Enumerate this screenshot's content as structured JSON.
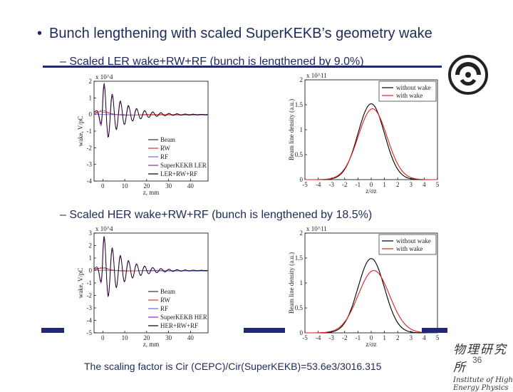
{
  "slide": {
    "bullet_symbol": "•",
    "heading": "Bunch lengthening with scaled SuperKEKB’s geometry wake",
    "sub1": "– Scaled LER wake+RW+RF (bunch is lengthened by 9.0%)",
    "sub2": "– Scaled HER wake+RW+RF (bunch is lengthened by 18.5%)",
    "footer": "The scaling factor is Cir (CEPC)/Cir(SuperKEKB)=53.6e3/3016.315",
    "page_number": "36",
    "institute_cn": "物理研究所",
    "institute_en": "Institute of High Energy Physics"
  },
  "colors": {
    "title": "#1f2a5c",
    "rule": "#222a6e"
  },
  "chart_data": [
    {
      "type": "line",
      "id": "ler-wake",
      "xlabel": "z, mm",
      "ylabel": "wake, V/pC",
      "exponent": "x 10^4",
      "xlim": [
        -4,
        48
      ],
      "ylim": [
        -4,
        2
      ],
      "xticks": [
        0,
        10,
        20,
        30,
        40
      ],
      "yticks": [
        2,
        1,
        0,
        -1,
        -2,
        -3,
        -4
      ],
      "legend": [
        "Beam",
        "RW",
        "RF",
        "SuperKEKB LER",
        "LER+RW+RF"
      ],
      "legend_colors": [
        "#333333",
        "#e03030",
        "#6a6adf",
        "#a020b0",
        "#000000"
      ]
    },
    {
      "type": "line",
      "id": "ler-density",
      "xlabel": "z/σz",
      "ylabel": "Beam line density (a.u.)",
      "exponent": "x 10^11",
      "xlim": [
        -5,
        5
      ],
      "ylim": [
        0,
        2
      ],
      "xticks": [
        -5,
        -4,
        -3,
        -2,
        -1,
        0,
        1,
        2,
        3,
        4,
        5
      ],
      "yticks": [
        2,
        1.5,
        1,
        0.5,
        0
      ],
      "series": [
        {
          "name": "without wake",
          "color": "#000000",
          "peak": 1.52,
          "center": 0,
          "sigma": 1.0
        },
        {
          "name": "with wake",
          "color": "#e02020",
          "peak": 1.42,
          "center": 0.1,
          "sigma": 1.09
        }
      ]
    },
    {
      "type": "line",
      "id": "her-wake",
      "xlabel": "z, mm",
      "ylabel": "wake, V/pC",
      "exponent": "x 10^4",
      "xlim": [
        -4,
        48
      ],
      "ylim": [
        -5,
        3
      ],
      "xticks": [
        0,
        10,
        20,
        30,
        40
      ],
      "yticks": [
        3,
        2,
        1,
        0,
        -1,
        -2,
        -3,
        -4,
        -5
      ],
      "legend": [
        "Beam",
        "RW",
        "RF",
        "SuperKEKB HER",
        "HER+RW+RF"
      ],
      "legend_colors": [
        "#333333",
        "#e03030",
        "#6a6adf",
        "#a020b0",
        "#000000"
      ]
    },
    {
      "type": "line",
      "id": "her-density",
      "xlabel": "z/σz",
      "ylabel": "Beam line density (a.u.)",
      "exponent": "x 10^11",
      "xlim": [
        -5,
        5
      ],
      "ylim": [
        0,
        2
      ],
      "xticks": [
        -5,
        -4,
        -3,
        -2,
        -1,
        0,
        1,
        2,
        3,
        4,
        5
      ],
      "yticks": [
        2,
        1.5,
        1,
        0.5,
        0
      ],
      "series": [
        {
          "name": "without wake",
          "color": "#000000",
          "peak": 1.49,
          "center": 0,
          "sigma": 1.0
        },
        {
          "name": "with wake",
          "color": "#e02020",
          "peak": 1.25,
          "center": 0.2,
          "sigma": 1.18
        }
      ]
    }
  ]
}
